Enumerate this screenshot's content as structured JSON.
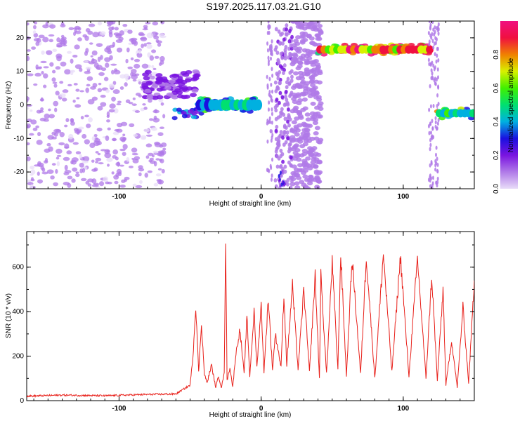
{
  "page": {
    "title": "S197.2025.117.03.21.G10"
  },
  "chart_data": [
    {
      "type": "heatmap",
      "xlabel": "Height of straight line (km)",
      "ylabel": "Frequency (Hz)",
      "xlim": [
        -165,
        150
      ],
      "ylim": [
        -25,
        25
      ],
      "x_ticks": [
        -100,
        0,
        100
      ],
      "y_ticks": [
        -20,
        -10,
        0,
        10,
        20
      ],
      "colorbar": {
        "label": "Normalized spectral amplitude",
        "range": [
          0,
          1
        ],
        "ticks": [
          "0.0",
          "0.2",
          "0.4",
          "0.6",
          "0.8"
        ],
        "colormap": [
          "#e8dcf8",
          "#b07ae8",
          "#7a14e0",
          "#1a10e0",
          "#00b0e0",
          "#00e070",
          "#40f000",
          "#d8f000",
          "#f08000",
          "#f01040",
          "#f01080"
        ]
      },
      "features": [
        {
          "x_range": [
            -165,
            -68
          ],
          "freq_range": [
            -25,
            25
          ],
          "amplitude": 0.08,
          "pattern": "scattered noise"
        },
        {
          "x_range": [
            -82,
            -45
          ],
          "freq_range": [
            2,
            10
          ],
          "amplitude": 0.18
        },
        {
          "x_range": [
            -62,
            -42
          ],
          "freq_range": [
            -4,
            -1
          ],
          "amplitude": 0.3
        },
        {
          "x_range": [
            -45,
            -2
          ],
          "freq_range": [
            -2,
            2
          ],
          "amplitude": 0.45
        },
        {
          "x_range": [
            4,
            8
          ],
          "freq_range": [
            -25,
            25
          ],
          "amplitude": 0.1
        },
        {
          "x_range": [
            10,
            22
          ],
          "freq_range": [
            -25,
            25
          ],
          "amplitude": 0.12
        },
        {
          "x_range": [
            12,
            16
          ],
          "freq_range": [
            -24,
            -20
          ],
          "amplitude": 0.25
        },
        {
          "x_range": [
            22,
            42
          ],
          "freq_range": [
            -25,
            25
          ],
          "amplitude": 0.1
        },
        {
          "x_range": [
            40,
            118
          ],
          "freq_range": [
            15,
            18
          ],
          "amplitude": 0.9
        },
        {
          "x_range": [
            118,
            125
          ],
          "freq_range": [
            -25,
            25
          ],
          "amplitude": 0.1
        },
        {
          "x_range": [
            124,
            148
          ],
          "freq_range": [
            -4,
            -1
          ],
          "amplitude": 0.55
        }
      ]
    },
    {
      "type": "line",
      "xlabel": "Height of straight line (km)",
      "ylabel": "SNR (10 * v/v)",
      "xlim": [
        -165,
        150
      ],
      "ylim": [
        0,
        760
      ],
      "x_ticks": [
        -100,
        0,
        100
      ],
      "y_ticks": [
        0,
        200,
        400,
        600
      ],
      "series": [
        {
          "color": "#e8201a",
          "x": [
            -165,
            -140,
            -110,
            -80,
            -60,
            -50,
            -48,
            -46,
            -44,
            -42,
            -40,
            -38,
            -35,
            -32,
            -30,
            -28,
            -26,
            -25,
            -24,
            -22,
            -20,
            -18,
            -15,
            -12,
            -10,
            -8,
            -5,
            -3,
            0,
            2,
            5,
            8,
            10,
            14,
            16,
            18,
            22,
            26,
            30,
            34,
            38,
            41,
            42,
            46,
            50,
            54,
            56,
            60,
            64,
            70,
            74,
            80,
            86,
            92,
            98,
            104,
            110,
            116,
            120,
            124,
            128,
            130,
            134,
            138,
            142,
            146,
            150
          ],
          "y": [
            20,
            25,
            22,
            28,
            30,
            70,
            200,
            430,
            130,
            350,
            120,
            80,
            160,
            60,
            110,
            60,
            120,
            740,
            90,
            150,
            60,
            200,
            320,
            120,
            380,
            110,
            400,
            150,
            430,
            130,
            460,
            140,
            300,
            150,
            480,
            160,
            520,
            140,
            500,
            130,
            560,
            100,
            560,
            120,
            620,
            140,
            660,
            110,
            640,
            120,
            650,
            100,
            660,
            130,
            650,
            110,
            640,
            100,
            560,
            90,
            500,
            70,
            270,
            60,
            420,
            80,
            540
          ]
        }
      ]
    }
  ]
}
